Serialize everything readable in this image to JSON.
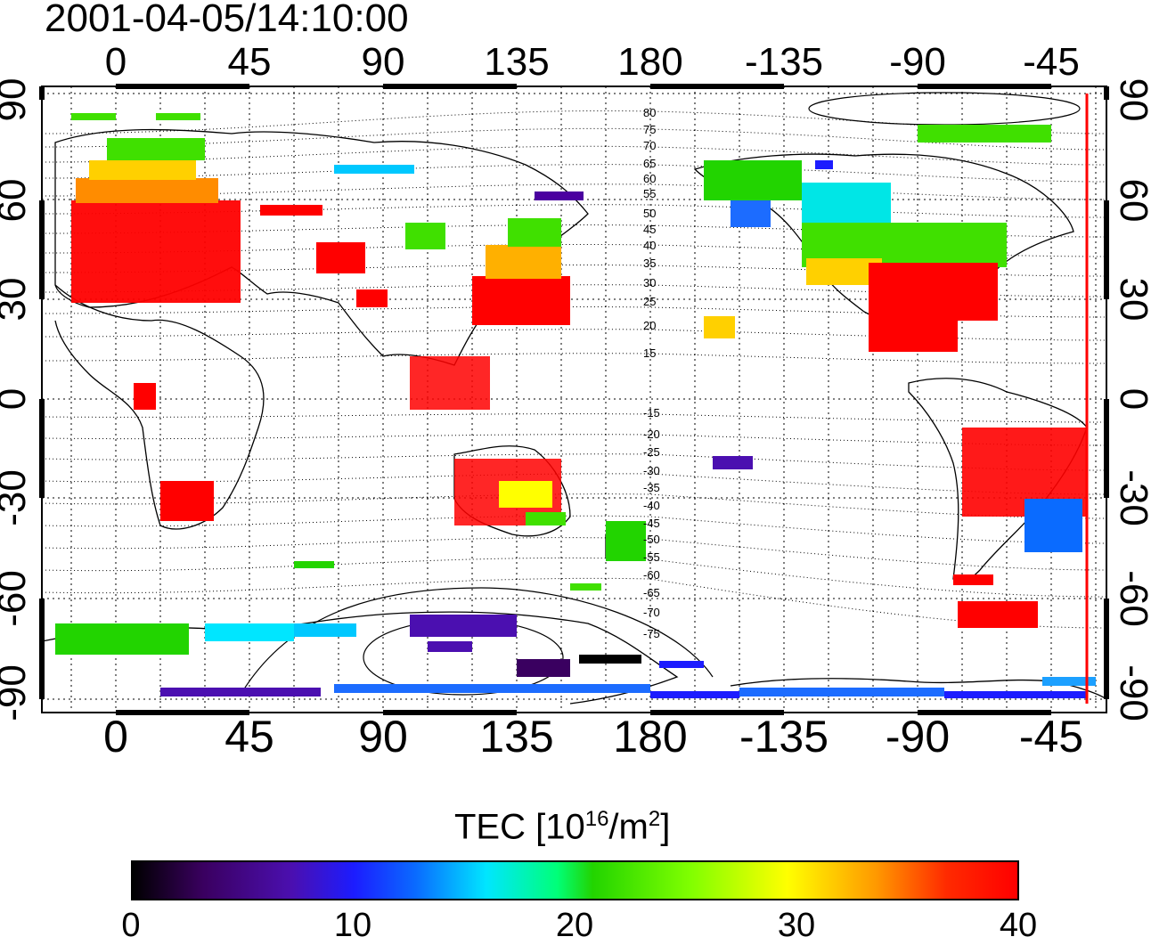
{
  "title": "2001-04-05/14:10:00",
  "longitude_ticks": [
    "0",
    "45",
    "90",
    "135",
    "180",
    "-135",
    "-90",
    "-45"
  ],
  "latitude_ticks": [
    "90",
    "60",
    "30",
    "0",
    "-30",
    "-60",
    "-90"
  ],
  "contour_labels": [
    "80",
    "75",
    "70",
    "65",
    "60",
    "55",
    "50",
    "45",
    "40",
    "35",
    "30",
    "25",
    "20",
    "15",
    "-15",
    "-20",
    "-25",
    "-30",
    "-35",
    "-40",
    "-45",
    "-50",
    "-55",
    "-60",
    "-65",
    "-70",
    "-75"
  ],
  "colorbar": {
    "title_prefix": "TEC  [10",
    "title_exp": "16",
    "title_mid": "/m",
    "title_sq": "2",
    "title_suffix": "]",
    "ticks": [
      "0",
      "10",
      "20",
      "30",
      "40"
    ],
    "range": [
      0,
      40
    ]
  },
  "colors": {
    "high": "#ff0000",
    "mid": "#00ff00",
    "low": "#0000ff",
    "marker_line": "#ff0000"
  }
}
